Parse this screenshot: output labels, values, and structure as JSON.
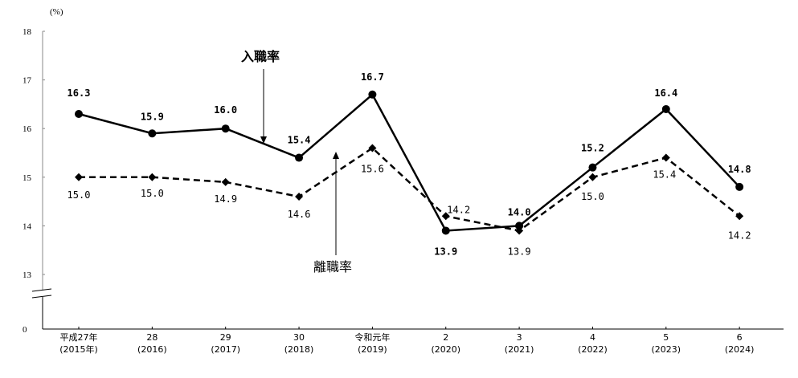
{
  "chart_data": {
    "type": "line",
    "unit_label": "(%)",
    "y_ticks": [
      "0",
      "13",
      "14",
      "15",
      "16",
      "17",
      "18"
    ],
    "ylim": [
      13,
      18
    ],
    "y_axis_break": true,
    "grid": false,
    "categories": [
      [
        "平成27年",
        "(2015年)"
      ],
      [
        "28",
        "(2016)"
      ],
      [
        "29",
        "(2017)"
      ],
      [
        "30",
        "(2018)"
      ],
      [
        "令和元年",
        "(2019)"
      ],
      [
        "2",
        "(2020)"
      ],
      [
        "3",
        "(2021)"
      ],
      [
        "4",
        "(2022)"
      ],
      [
        "5",
        "(2023)"
      ],
      [
        "6",
        "(2024)"
      ]
    ],
    "series": [
      {
        "name": "入職率",
        "style": "solid",
        "marker": "circle",
        "color": "#000000",
        "values": [
          16.3,
          15.9,
          16.0,
          15.4,
          16.7,
          13.9,
          14.0,
          15.2,
          16.4,
          14.8
        ],
        "labels": [
          "16.3",
          "15.9",
          "16.0",
          "15.4",
          "16.7",
          "13.9",
          "14.0",
          "15.2",
          "16.4",
          "14.8"
        ]
      },
      {
        "name": "離職率",
        "style": "dashed",
        "marker": "diamond",
        "color": "#000000",
        "values": [
          15.0,
          15.0,
          14.9,
          14.6,
          15.6,
          14.2,
          13.9,
          15.0,
          15.4,
          14.2
        ],
        "labels": [
          "15.0",
          "15.0",
          "14.9",
          "14.6",
          "15.6",
          "14.2",
          "13.9",
          "15.0",
          "15.4",
          "14.2"
        ]
      }
    ]
  }
}
